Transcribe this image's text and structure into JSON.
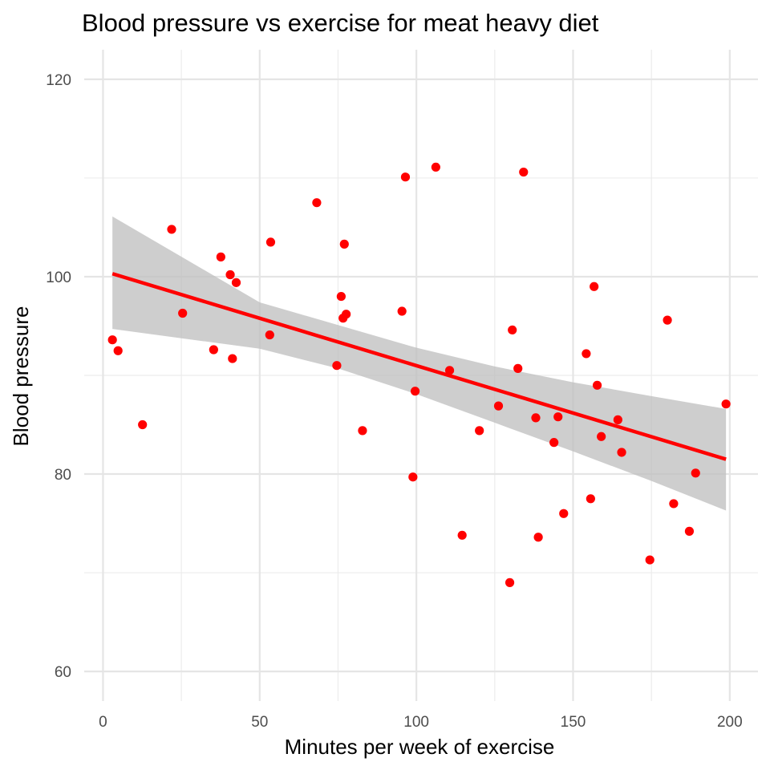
{
  "chart_data": {
    "type": "scatter",
    "title": "Blood pressure vs exercise for meat heavy diet",
    "xlabel": "Minutes per week of exercise",
    "ylabel": "Blood pressure",
    "xlim": [
      -6,
      209
    ],
    "ylim": [
      57,
      123
    ],
    "x_ticks": [
      0,
      50,
      100,
      150,
      200
    ],
    "y_ticks": [
      60,
      80,
      100,
      120
    ],
    "x_tick_labels": [
      "0",
      "50",
      "100",
      "150",
      "200"
    ],
    "y_tick_labels": [
      "60",
      "80",
      "100",
      "120"
    ],
    "grid": true,
    "point_color": "#ff0000",
    "line_color": "#ff0000",
    "band_color": "#bebebe",
    "points": [
      {
        "x": 3,
        "y": 93.6
      },
      {
        "x": 4.8,
        "y": 92.5
      },
      {
        "x": 12.6,
        "y": 85.0
      },
      {
        "x": 21.9,
        "y": 104.8
      },
      {
        "x": 25.4,
        "y": 96.3
      },
      {
        "x": 35.3,
        "y": 92.6
      },
      {
        "x": 37.6,
        "y": 102.0
      },
      {
        "x": 40.6,
        "y": 100.2
      },
      {
        "x": 41.3,
        "y": 91.7
      },
      {
        "x": 42.5,
        "y": 99.4
      },
      {
        "x": 53.2,
        "y": 94.1
      },
      {
        "x": 53.5,
        "y": 103.5
      },
      {
        "x": 68.2,
        "y": 107.5
      },
      {
        "x": 74.6,
        "y": 91.0
      },
      {
        "x": 76.0,
        "y": 98.0
      },
      {
        "x": 76.6,
        "y": 95.8
      },
      {
        "x": 77.0,
        "y": 103.3
      },
      {
        "x": 77.6,
        "y": 96.2
      },
      {
        "x": 82.8,
        "y": 84.4
      },
      {
        "x": 95.4,
        "y": 96.5
      },
      {
        "x": 96.5,
        "y": 110.1
      },
      {
        "x": 98.9,
        "y": 79.7
      },
      {
        "x": 99.6,
        "y": 88.4
      },
      {
        "x": 106.2,
        "y": 111.1
      },
      {
        "x": 110.6,
        "y": 90.5
      },
      {
        "x": 114.6,
        "y": 73.8
      },
      {
        "x": 120.1,
        "y": 84.4
      },
      {
        "x": 126.2,
        "y": 86.9
      },
      {
        "x": 129.8,
        "y": 69.0
      },
      {
        "x": 130.6,
        "y": 94.6
      },
      {
        "x": 132.4,
        "y": 90.7
      },
      {
        "x": 134.2,
        "y": 110.6
      },
      {
        "x": 138.1,
        "y": 85.7
      },
      {
        "x": 138.9,
        "y": 73.6
      },
      {
        "x": 143.9,
        "y": 83.2
      },
      {
        "x": 145.2,
        "y": 85.8
      },
      {
        "x": 147.0,
        "y": 76.0
      },
      {
        "x": 154.2,
        "y": 92.2
      },
      {
        "x": 155.6,
        "y": 77.5
      },
      {
        "x": 156.7,
        "y": 99.0
      },
      {
        "x": 157.7,
        "y": 89.0
      },
      {
        "x": 159.0,
        "y": 83.8
      },
      {
        "x": 164.3,
        "y": 85.5
      },
      {
        "x": 165.5,
        "y": 82.2
      },
      {
        "x": 174.5,
        "y": 71.3
      },
      {
        "x": 180.1,
        "y": 95.6
      },
      {
        "x": 182.1,
        "y": 77.0
      },
      {
        "x": 187.1,
        "y": 74.2
      },
      {
        "x": 189.1,
        "y": 80.1
      },
      {
        "x": 198.8,
        "y": 87.1
      }
    ],
    "trend_line": {
      "x": [
        3,
        198.8
      ],
      "y": [
        100.3,
        81.5
      ]
    },
    "confidence_band": {
      "x": [
        3,
        50,
        75,
        100,
        125,
        150,
        175,
        198.8
      ],
      "upper": [
        106.1,
        97.4,
        95.1,
        92.8,
        90.9,
        89.3,
        87.9,
        86.6
      ],
      "lower": [
        94.7,
        92.7,
        90.7,
        88.1,
        85.2,
        82.3,
        79.3,
        76.3
      ]
    }
  }
}
